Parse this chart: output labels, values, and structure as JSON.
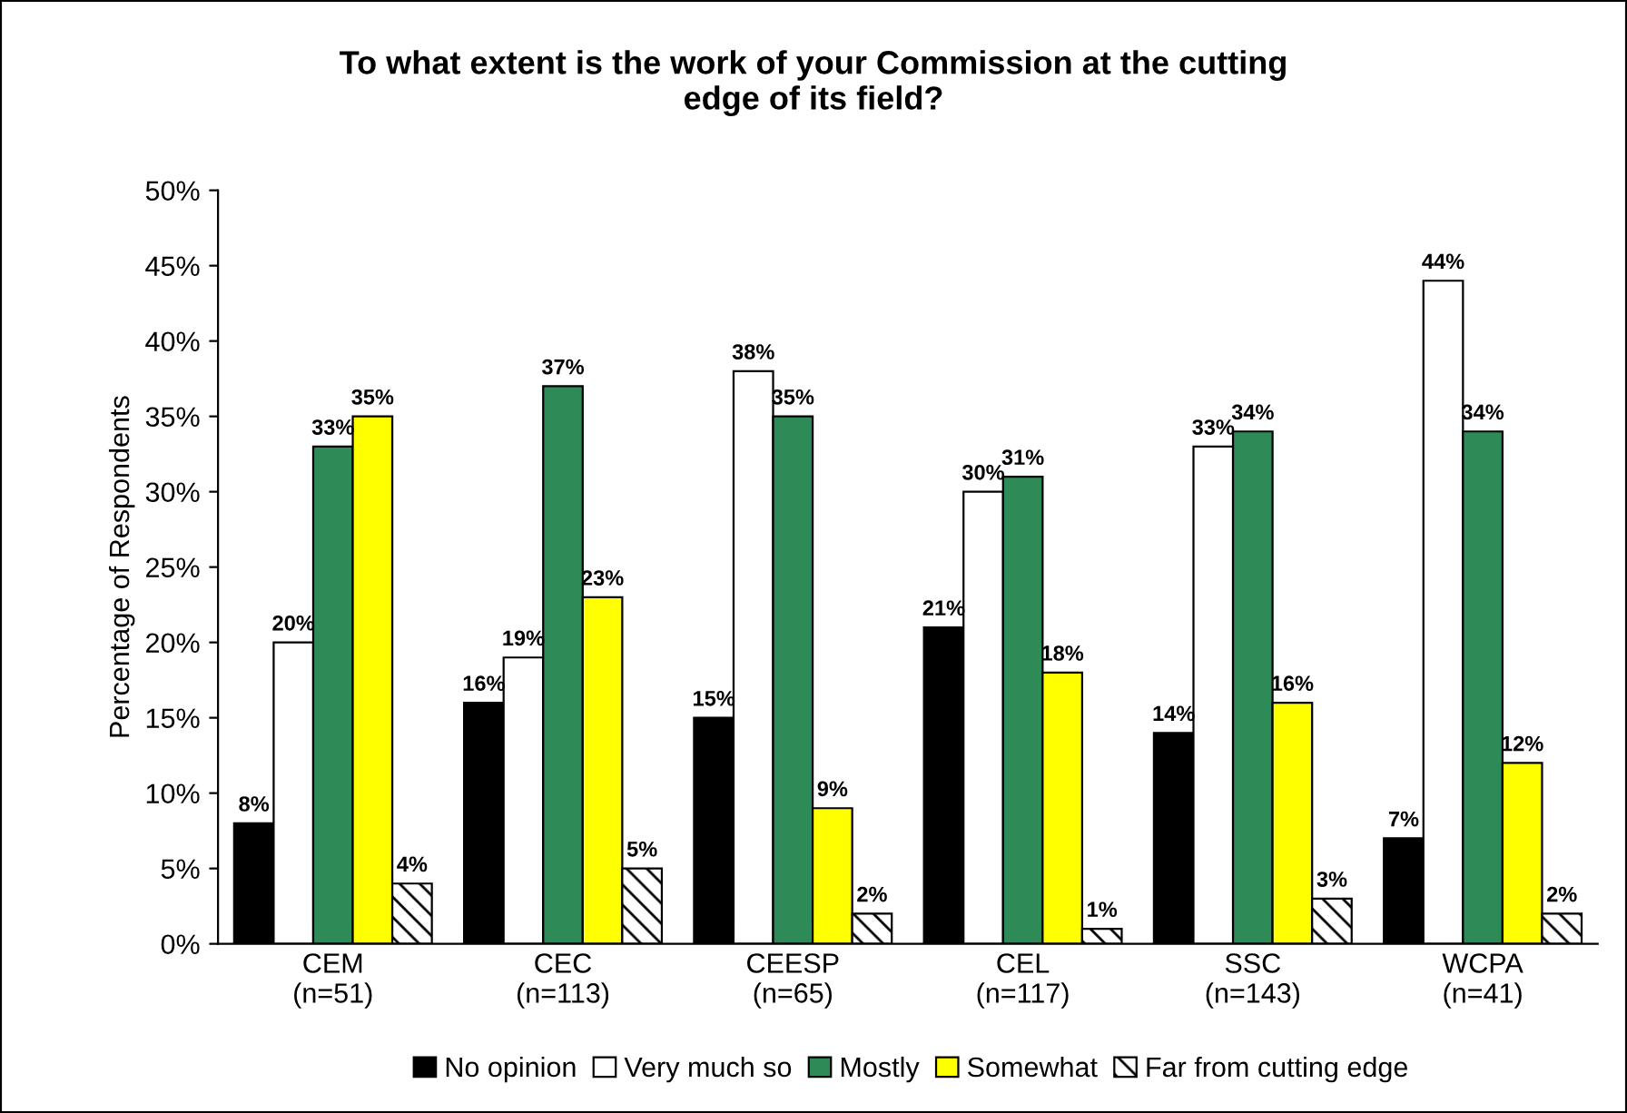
{
  "chart_data": {
    "type": "bar",
    "title": "To what extent is the work of your Commission at the cutting\nedge of its field?",
    "ylabel": "Percentage of Respondents",
    "categories": [
      "CEM\n(n=51)",
      "CEC\n(n=113)",
      "CEESP\n(n=65)",
      "CEL\n(n=117)",
      "SSC\n(n=143)",
      "WCPA\n(n=41)"
    ],
    "series": [
      {
        "name": "No opinion",
        "color": "#000000",
        "values": [
          8,
          16,
          15,
          21,
          14,
          7
        ],
        "value_labels": [
          "8%",
          "16%",
          "15%",
          "21%",
          "14%",
          "7%"
        ]
      },
      {
        "name": "Very much so",
        "color": "#ffffff",
        "values": [
          20,
          19,
          38,
          30,
          33,
          44
        ],
        "value_labels": [
          "20%",
          "19%",
          "38%",
          "30%",
          "33%",
          "44%"
        ]
      },
      {
        "name": "Mostly",
        "color": "#2e8b57",
        "values": [
          33,
          37,
          35,
          31,
          34,
          34
        ],
        "value_labels": [
          "33%",
          "37%",
          "35%",
          "31%",
          "34%",
          "34%"
        ]
      },
      {
        "name": "Somewhat",
        "color": "#ffff00",
        "values": [
          35,
          23,
          9,
          18,
          16,
          12
        ],
        "value_labels": [
          "35%",
          "23%",
          "9%",
          "18%",
          "16%",
          "12%"
        ]
      },
      {
        "name": "Far from cutting edge",
        "color": "#000000",
        "values": [
          4,
          5,
          2,
          1,
          3,
          2
        ],
        "value_labels": [
          "4%",
          "5%",
          "2%",
          "1%",
          "3%",
          "2%"
        ]
      }
    ],
    "ylim": [
      0,
      50
    ],
    "yticks": [
      {
        "value": 0,
        "label": "0%"
      },
      {
        "value": 5,
        "label": "5%"
      },
      {
        "value": 10,
        "label": "10%"
      },
      {
        "value": 15,
        "label": "15%"
      },
      {
        "value": 20,
        "label": "20%"
      },
      {
        "value": 25,
        "label": "25%"
      },
      {
        "value": 30,
        "label": "30%"
      },
      {
        "value": 35,
        "label": "35%"
      },
      {
        "value": 40,
        "label": "40%"
      },
      {
        "value": 45,
        "label": "45%"
      },
      {
        "value": 50,
        "label": "50%"
      }
    ],
    "grid": false,
    "legend": "bottom"
  }
}
